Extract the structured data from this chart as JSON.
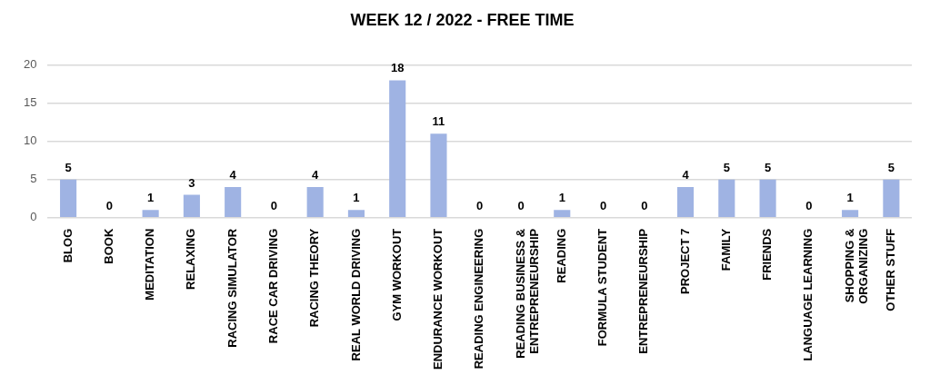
{
  "chart_data": {
    "type": "bar",
    "title": "WEEK 12 / 2022 - FREE TIME",
    "categories": [
      "BLOG",
      "BOOK",
      "MEDITATION",
      "RELAXING",
      "RACING SIMULATOR",
      "RACE CAR DRIVING",
      "RACING THEORY",
      "REAL WORLD DRIVING",
      "GYM WORKOUT",
      "ENDURANCE WORKOUT",
      "READING ENGINEERING",
      "READING BUSINESS & ENTREPRENEURSHIP",
      "READING",
      "FORMULA STUDENT",
      "ENTREPRENEURSHIP",
      "PROJECT 7",
      "FAMILY",
      "FRIENDS",
      "LANGUAGE LEARNING",
      "SHOPPING & ORGANIZING",
      "OTHER STUFF"
    ],
    "values": [
      5,
      0,
      1,
      3,
      4,
      0,
      4,
      1,
      18,
      11,
      0,
      0,
      1,
      0,
      0,
      4,
      5,
      5,
      0,
      1,
      5
    ],
    "color": "#9fb3e3",
    "ylim": [
      0,
      20
    ],
    "yticks": [
      0,
      5,
      10,
      15,
      20
    ],
    "grid": true,
    "data_labels": true
  }
}
